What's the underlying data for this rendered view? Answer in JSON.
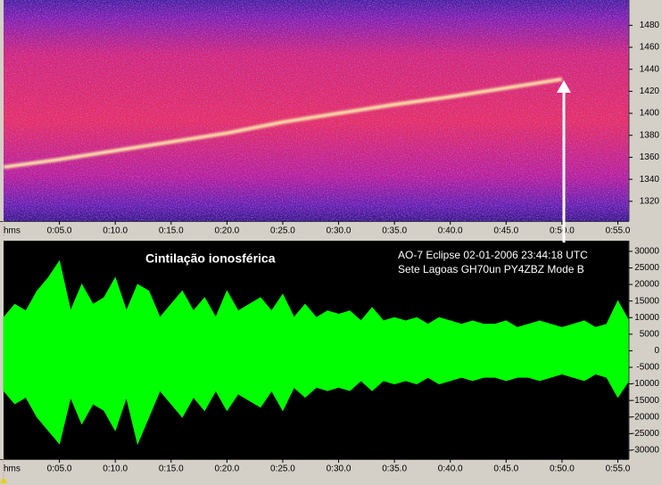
{
  "chart_data": [
    {
      "type": "spectrogram",
      "xlabel": "hms",
      "xlim": [
        0,
        56
      ],
      "xticks": [
        {
          "value": 5,
          "label": "0:05.0"
        },
        {
          "value": 10,
          "label": "0:10.0"
        },
        {
          "value": 15,
          "label": "0:15.0"
        },
        {
          "value": 20,
          "label": "0:20.0"
        },
        {
          "value": 25,
          "label": "0:25.0"
        },
        {
          "value": 30,
          "label": "0:30.0"
        },
        {
          "value": 35,
          "label": "0:35.0"
        },
        {
          "value": 40,
          "label": "0:40.0"
        },
        {
          "value": 45,
          "label": "0:45.0"
        },
        {
          "value": 50,
          "label": "0:50.0"
        },
        {
          "value": 55,
          "label": "0:55.0"
        }
      ],
      "ylim": [
        1302,
        1503
      ],
      "yticks": [
        1320,
        1340,
        1360,
        1380,
        1400,
        1420,
        1440,
        1460,
        1480
      ],
      "trace": {
        "color": "#ffe6a8",
        "x": [
          0,
          5,
          10,
          15,
          20,
          25,
          30,
          35,
          40,
          45,
          50
        ],
        "values": [
          1351,
          1358,
          1366,
          1374,
          1382,
          1392,
          1400,
          1408,
          1415,
          1423,
          1431
        ]
      }
    },
    {
      "type": "waveform",
      "xlabel": "hms",
      "color": "#00ff00",
      "xlim": [
        0,
        56
      ],
      "xticks": [
        {
          "value": 5,
          "label": "0:05.0"
        },
        {
          "value": 10,
          "label": "0:10.0"
        },
        {
          "value": 15,
          "label": "0:15.0"
        },
        {
          "value": 20,
          "label": "0:20.0"
        },
        {
          "value": 25,
          "label": "0:25.0"
        },
        {
          "value": 30,
          "label": "0:30.0"
        },
        {
          "value": 35,
          "label": "0:35.0"
        },
        {
          "value": 40,
          "label": "0:40.0"
        },
        {
          "value": 45,
          "label": "0:45.0"
        },
        {
          "value": 50,
          "label": "0:50.0"
        },
        {
          "value": 55,
          "label": "0:55.0"
        }
      ],
      "ylim": [
        -32700,
        33200
      ],
      "yticks": [
        -30000,
        -25000,
        -20000,
        -15000,
        -10000,
        -5000,
        0,
        5000,
        10000,
        15000,
        20000,
        25000,
        30000
      ],
      "x": [
        0,
        1,
        2,
        3,
        4,
        5,
        6,
        7,
        8,
        9,
        10,
        11,
        12,
        13,
        14,
        15,
        16,
        17,
        18,
        19,
        20,
        21,
        22,
        23,
        24,
        25,
        26,
        27,
        28,
        29,
        30,
        31,
        32,
        33,
        34,
        35,
        36,
        37,
        38,
        39,
        40,
        41,
        42,
        43,
        44,
        45,
        46,
        47,
        48,
        49,
        50,
        51,
        52,
        53,
        54,
        55,
        56
      ],
      "upper_envelope": [
        10000,
        14000,
        12000,
        18000,
        22000,
        27000,
        12000,
        20000,
        14000,
        16000,
        22000,
        12000,
        20000,
        18000,
        10000,
        14000,
        18000,
        12000,
        16000,
        10000,
        18000,
        12000,
        14000,
        16000,
        12000,
        17000,
        10000,
        14000,
        10000,
        12000,
        11000,
        12000,
        9000,
        13000,
        9000,
        10000,
        9000,
        10000,
        8000,
        10000,
        9000,
        8000,
        9000,
        8000,
        8000,
        9000,
        7000,
        8000,
        9000,
        8000,
        7000,
        8000,
        9000,
        7000,
        8000,
        15000,
        9000
      ],
      "lower_envelope": [
        -12000,
        -16000,
        -14000,
        -20000,
        -24000,
        -28000,
        -14000,
        -22000,
        -16000,
        -18000,
        -24000,
        -14000,
        -28000,
        -20000,
        -12000,
        -16000,
        -20000,
        -14000,
        -18000,
        -12000,
        -18000,
        -13000,
        -15000,
        -17000,
        -12000,
        -18000,
        -11000,
        -14000,
        -11000,
        -12000,
        -11000,
        -12000,
        -9000,
        -12000,
        -9000,
        -10000,
        -9000,
        -10000,
        -8000,
        -10000,
        -9000,
        -8000,
        -9000,
        -8000,
        -8000,
        -9000,
        -8000,
        -8000,
        -9000,
        -8000,
        -7000,
        -8000,
        -9000,
        -7000,
        -8000,
        -14000,
        -9000
      ],
      "annotations": [
        "Cintilação ionosférica",
        "AO-7   Eclipse   02-01-2006   23:44:18 UTC",
        "Sete Lagoas GH70un    PY4ZBZ    Mode B"
      ]
    }
  ]
}
